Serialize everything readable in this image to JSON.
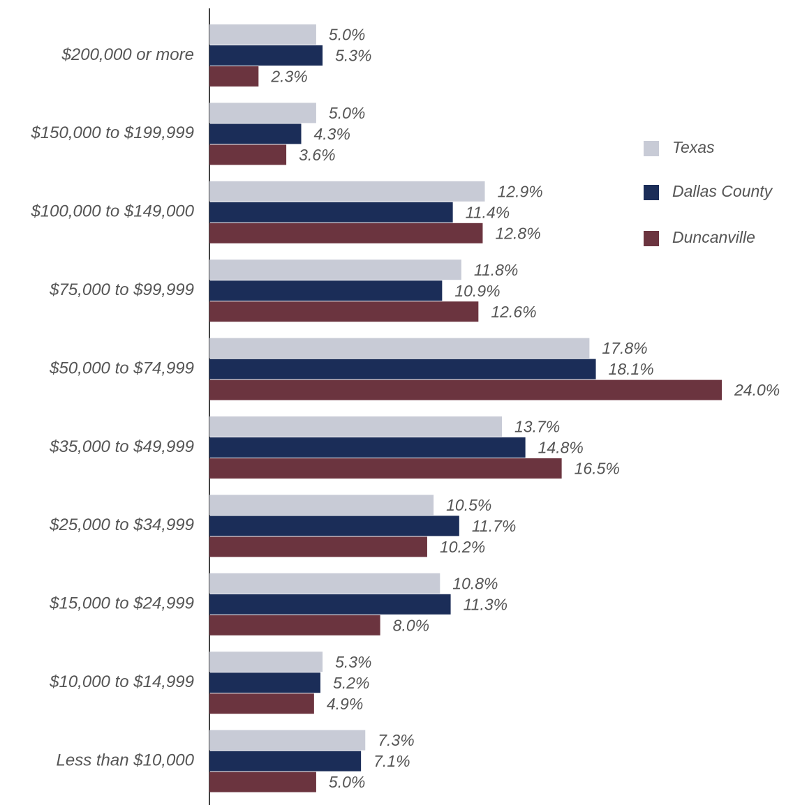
{
  "chart_data": {
    "type": "hbar",
    "categories": [
      "$200,000 or more",
      "$150,000 to $199,999",
      "$100,000 to $149,000",
      "$75,000 to $99,999",
      "$50,000 to $74,999",
      "$35,000 to $49,999",
      "$25,000 to $34,999",
      "$15,000 to $24,999",
      "$10,000 to $14,999",
      "Less than $10,000"
    ],
    "series": [
      {
        "name": "Texas",
        "color": "#c8cbd6",
        "values": [
          5.0,
          5.0,
          12.9,
          11.8,
          17.8,
          13.7,
          10.5,
          10.8,
          5.3,
          7.3
        ],
        "value_labels": [
          "5.0%",
          "5.0%",
          "12.9%",
          "11.8%",
          "17.8%",
          "13.7%",
          "10.5%",
          "10.8%",
          "5.3%",
          "7.3%"
        ]
      },
      {
        "name": "Dallas County",
        "color": "#1b2d58",
        "values": [
          5.3,
          4.3,
          11.4,
          10.9,
          18.1,
          14.8,
          11.7,
          11.3,
          5.2,
          7.1
        ],
        "value_labels": [
          "5.3%",
          "4.3%",
          "11.4%",
          "10.9%",
          "18.1%",
          "14.8%",
          "11.7%",
          "11.3%",
          "5.2%",
          "7.1%"
        ]
      },
      {
        "name": "Duncanville",
        "color": "#6b343f",
        "values": [
          2.3,
          3.6,
          12.8,
          12.6,
          24.0,
          16.5,
          10.2,
          8.0,
          4.9,
          5.0
        ],
        "value_labels": [
          "2.3%",
          "3.6%",
          "12.8%",
          "12.6%",
          "24.0%",
          "16.5%",
          "10.2%",
          "8.0%",
          "4.9%",
          "5.0%"
        ]
      }
    ],
    "legend": "right"
  }
}
